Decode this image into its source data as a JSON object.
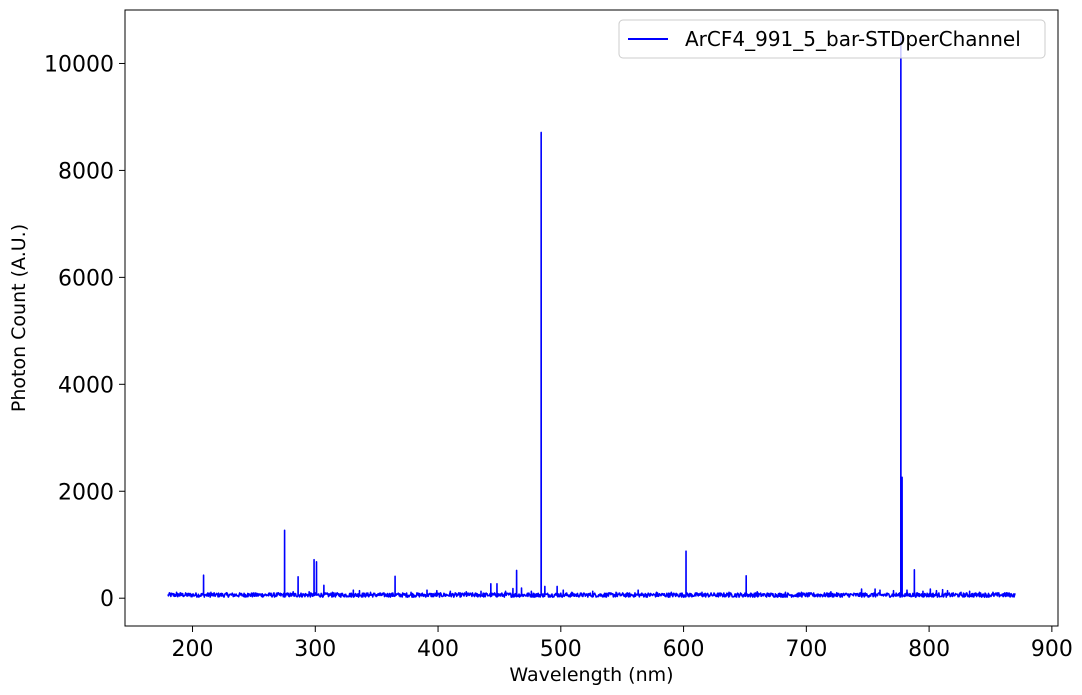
{
  "chart_data": {
    "type": "line",
    "title": "",
    "xlabel": "Wavelength (nm)",
    "ylabel": "Photon Count (A.U.)",
    "xlim": [
      145,
      905
    ],
    "ylim": [
      -520,
      11000
    ],
    "xticks": [
      200,
      300,
      400,
      500,
      600,
      700,
      800,
      900
    ],
    "yticks": [
      0,
      2000,
      4000,
      6000,
      8000,
      10000
    ],
    "grid": false,
    "legend_position": "top-right",
    "series": [
      {
        "name": "ArCF4_991_5_bar-STDperChannel",
        "color": "#0000ff",
        "x_range": [
          180,
          870
        ],
        "baseline_level": 60,
        "noise_amplitude": 40,
        "peaks": [
          {
            "x": 182,
            "y": 90
          },
          {
            "x": 187,
            "y": 110
          },
          {
            "x": 190,
            "y": 100
          },
          {
            "x": 209,
            "y": 430
          },
          {
            "x": 215,
            "y": 110
          },
          {
            "x": 228,
            "y": 100
          },
          {
            "x": 245,
            "y": 90
          },
          {
            "x": 262,
            "y": 90
          },
          {
            "x": 275,
            "y": 1270
          },
          {
            "x": 282,
            "y": 120
          },
          {
            "x": 286,
            "y": 400
          },
          {
            "x": 295,
            "y": 120
          },
          {
            "x": 299,
            "y": 720
          },
          {
            "x": 301,
            "y": 680
          },
          {
            "x": 307,
            "y": 240
          },
          {
            "x": 314,
            "y": 110
          },
          {
            "x": 331,
            "y": 150
          },
          {
            "x": 336,
            "y": 140
          },
          {
            "x": 345,
            "y": 110
          },
          {
            "x": 365,
            "y": 410
          },
          {
            "x": 378,
            "y": 110
          },
          {
            "x": 391,
            "y": 150
          },
          {
            "x": 399,
            "y": 140
          },
          {
            "x": 410,
            "y": 130
          },
          {
            "x": 423,
            "y": 120
          },
          {
            "x": 435,
            "y": 130
          },
          {
            "x": 443,
            "y": 270
          },
          {
            "x": 448,
            "y": 270
          },
          {
            "x": 455,
            "y": 130
          },
          {
            "x": 461,
            "y": 180
          },
          {
            "x": 464,
            "y": 520
          },
          {
            "x": 468,
            "y": 190
          },
          {
            "x": 476,
            "y": 130
          },
          {
            "x": 484,
            "y": 8710
          },
          {
            "x": 487,
            "y": 220
          },
          {
            "x": 497,
            "y": 220
          },
          {
            "x": 502,
            "y": 150
          },
          {
            "x": 509,
            "y": 110
          },
          {
            "x": 526,
            "y": 130
          },
          {
            "x": 545,
            "y": 110
          },
          {
            "x": 563,
            "y": 150
          },
          {
            "x": 578,
            "y": 110
          },
          {
            "x": 590,
            "y": 110
          },
          {
            "x": 602,
            "y": 880
          },
          {
            "x": 615,
            "y": 110
          },
          {
            "x": 637,
            "y": 110
          },
          {
            "x": 651,
            "y": 420
          },
          {
            "x": 660,
            "y": 120
          },
          {
            "x": 683,
            "y": 110
          },
          {
            "x": 696,
            "y": 110
          },
          {
            "x": 720,
            "y": 120
          },
          {
            "x": 745,
            "y": 170
          },
          {
            "x": 756,
            "y": 170
          },
          {
            "x": 760,
            "y": 150
          },
          {
            "x": 771,
            "y": 140
          },
          {
            "x": 777,
            "y": 10500
          },
          {
            "x": 778,
            "y": 2260
          },
          {
            "x": 782,
            "y": 150
          },
          {
            "x": 788,
            "y": 530
          },
          {
            "x": 795,
            "y": 130
          },
          {
            "x": 801,
            "y": 170
          },
          {
            "x": 806,
            "y": 140
          },
          {
            "x": 811,
            "y": 160
          },
          {
            "x": 815,
            "y": 140
          },
          {
            "x": 826,
            "y": 110
          },
          {
            "x": 833,
            "y": 130
          },
          {
            "x": 841,
            "y": 110
          },
          {
            "x": 852,
            "y": 110
          },
          {
            "x": 863,
            "y": 100
          }
        ]
      }
    ]
  }
}
